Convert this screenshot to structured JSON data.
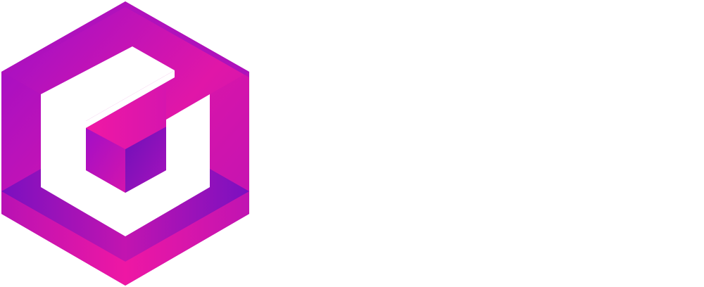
{
  "logo": {
    "icon": "hexagon-cube-g-logo-icon",
    "colors": {
      "primary_purple": "#8e0fc7",
      "primary_magenta": "#ee17a4",
      "deep_violet": "#6a0fb8",
      "background": "#ffffff"
    }
  }
}
